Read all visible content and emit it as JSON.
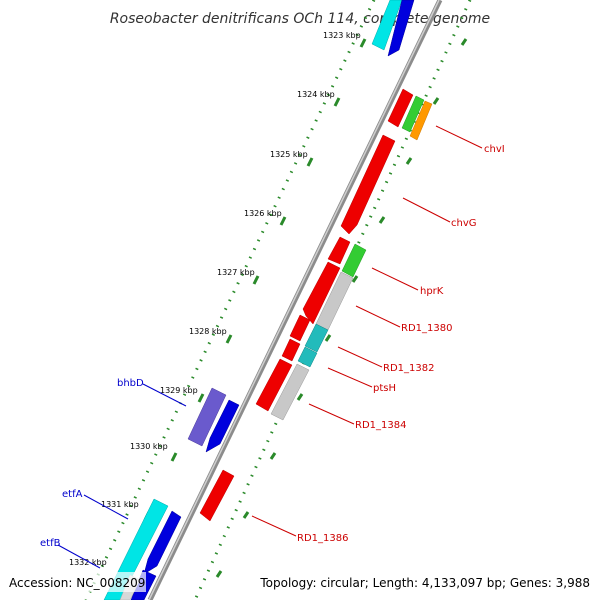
{
  "title": "Roseobacter denitrificans OCh 114, complete genome",
  "footer": {
    "accession": "Accession: NC_008209",
    "summary": "Topology: circular; Length: 4,133,097 bp; Genes: 3,988"
  },
  "colors": {
    "backbone": "#8c8c8c",
    "tick_dots": "#2a8a2a",
    "red": "#ee0000",
    "blue": "#0000dd",
    "cyan": "#00e5e5",
    "teal": "#22bbbb",
    "green": "#33cc33",
    "orange": "#ff9900",
    "purple": "#6a5acd",
    "gray": "#bdbdbd",
    "label_red": "#cc0000",
    "label_blue": "#0000cc"
  },
  "scale_labels": [
    "1323 kbp",
    "1324 kbp",
    "1325 kbp",
    "1326 kbp",
    "1327 kbp",
    "1328 kbp",
    "1329 kbp",
    "1330 kbp",
    "1331 kbp",
    "1332 kbp"
  ],
  "gene_labels": {
    "chvI": "chvI",
    "chvG": "chvG",
    "hprK": "hprK",
    "rd1_1380": "RD1_1380",
    "rd1_1382": "RD1_1382",
    "ptsH": "ptsH",
    "rd1_1384": "RD1_1384",
    "rd1_1386": "RD1_1386",
    "bhbD": "bhbD",
    "etfA": "etfA",
    "etfB": "etfB"
  }
}
